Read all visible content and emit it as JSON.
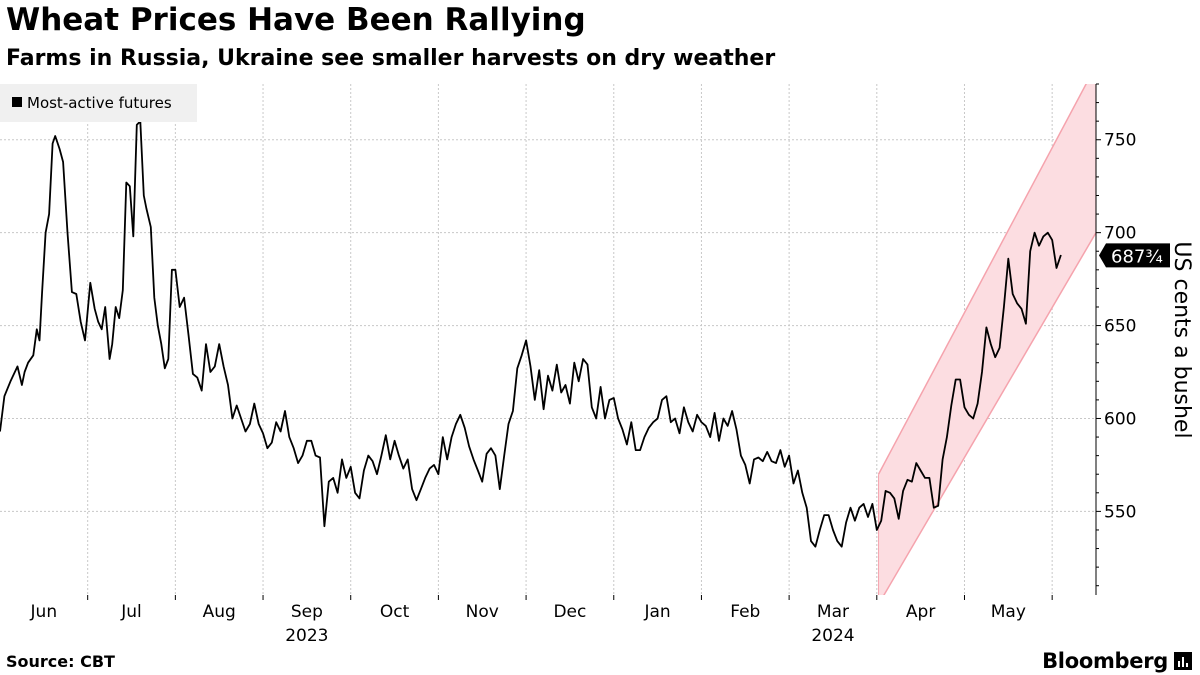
{
  "title": "Wheat Prices Have Been Rallying",
  "subtitle": "Farms in Russia, Ukraine see smaller harvests on dry weather",
  "source": "Source: CBT",
  "brand": "Bloomberg",
  "chart_data": {
    "type": "line",
    "legend": "Most-active futures",
    "legend_position": "top-left",
    "ylabel": "US cents a bushel",
    "ylim": [
      505,
      780
    ],
    "yticks": [
      550,
      600,
      650,
      700,
      750
    ],
    "grid": true,
    "y_axis_side": "right",
    "last_value_label": "687¾",
    "last_value": 687.75,
    "months": [
      "Jun",
      "Jul",
      "Aug",
      "Sep",
      "Oct",
      "Nov",
      "Dec",
      "Jan",
      "Feb",
      "Mar",
      "Apr",
      "May"
    ],
    "year_labels": [
      {
        "label": "2023",
        "under": "Sep"
      },
      {
        "label": "2024",
        "under": "Mar"
      }
    ],
    "x_range": [
      0,
      12.5
    ],
    "color": "#000000",
    "channel": {
      "color": "#f5a3ad",
      "fill": "#fcdde1",
      "x0": 10.02,
      "upper": [
        [
          10.02,
          570
        ],
        [
          12.5,
          790
        ]
      ],
      "lower": [
        [
          10.02,
          500
        ],
        [
          12.5,
          700
        ]
      ]
    },
    "series": [
      {
        "name": "Most-active futures",
        "x": [
          0.0,
          0.05,
          0.12,
          0.2,
          0.25,
          0.28,
          0.32,
          0.38,
          0.42,
          0.45,
          0.48,
          0.52,
          0.56,
          0.6,
          0.63,
          0.68,
          0.72,
          0.77,
          0.82,
          0.87,
          0.92,
          0.97,
          1.03,
          1.08,
          1.12,
          1.16,
          1.2,
          1.25,
          1.28,
          1.32,
          1.36,
          1.4,
          1.44,
          1.48,
          1.52,
          1.56,
          1.6,
          1.64,
          1.67,
          1.72,
          1.76,
          1.8,
          1.84,
          1.88,
          1.92,
          1.96,
          2.0,
          2.05,
          2.1,
          2.15,
          2.2,
          2.25,
          2.3,
          2.35,
          2.4,
          2.45,
          2.5,
          2.55,
          2.6,
          2.65,
          2.7,
          2.75,
          2.8,
          2.85,
          2.9,
          2.95,
          3.0,
          3.05,
          3.1,
          3.15,
          3.2,
          3.25,
          3.3,
          3.35,
          3.4,
          3.45,
          3.5,
          3.55,
          3.6,
          3.65,
          3.7,
          3.75,
          3.8,
          3.85,
          3.9,
          3.95,
          4.0,
          4.05,
          4.1,
          4.15,
          4.2,
          4.25,
          4.3,
          4.35,
          4.4,
          4.45,
          4.5,
          4.55,
          4.6,
          4.65,
          4.7,
          4.75,
          4.8,
          4.85,
          4.9,
          4.95,
          5.0,
          5.05,
          5.1,
          5.15,
          5.2,
          5.25,
          5.3,
          5.35,
          5.4,
          5.45,
          5.5,
          5.55,
          5.6,
          5.65,
          5.7,
          5.75,
          5.8,
          5.85,
          5.9,
          5.95,
          6.0,
          6.05,
          6.1,
          6.15,
          6.2,
          6.25,
          6.3,
          6.35,
          6.4,
          6.45,
          6.5,
          6.55,
          6.6,
          6.65,
          6.7,
          6.75,
          6.8,
          6.85,
          6.9,
          6.95,
          7.0,
          7.05,
          7.1,
          7.15,
          7.2,
          7.25,
          7.3,
          7.35,
          7.4,
          7.45,
          7.5,
          7.55,
          7.6,
          7.65,
          7.7,
          7.75,
          7.8,
          7.85,
          7.9,
          7.95,
          8.0,
          8.05,
          8.1,
          8.15,
          8.2,
          8.25,
          8.3,
          8.35,
          8.4,
          8.45,
          8.5,
          8.55,
          8.6,
          8.65,
          8.7,
          8.75,
          8.8,
          8.85,
          8.9,
          8.95,
          9.0,
          9.05,
          9.1,
          9.15,
          9.2,
          9.25,
          9.3,
          9.35,
          9.4,
          9.45,
          9.5,
          9.55,
          9.6,
          9.65,
          9.7,
          9.75,
          9.8,
          9.85,
          9.9,
          9.95,
          10.0,
          10.05,
          10.1,
          10.15,
          10.2,
          10.25,
          10.3,
          10.35,
          10.4,
          10.45,
          10.5,
          10.55,
          10.6,
          10.65,
          10.7,
          10.75,
          10.8,
          10.85,
          10.9,
          10.95,
          11.0,
          11.05,
          11.1,
          11.15,
          11.2,
          11.25,
          11.3,
          11.35,
          11.4,
          11.45,
          11.5,
          11.55,
          11.6,
          11.65,
          11.7,
          11.75,
          11.8,
          11.85,
          11.9,
          11.95,
          12.0,
          12.05,
          12.1
        ],
        "values": [
          593,
          612,
          620,
          628,
          618,
          625,
          630,
          634,
          648,
          642,
          668,
          700,
          710,
          748,
          752,
          745,
          738,
          700,
          668,
          667,
          652,
          642,
          673,
          659,
          652,
          648,
          660,
          632,
          640,
          660,
          654,
          669,
          727,
          725,
          698,
          758,
          760,
          720,
          713,
          703,
          665,
          650,
          640,
          627,
          632,
          680,
          680,
          660,
          665,
          645,
          624,
          622,
          615,
          640,
          625,
          628,
          640,
          628,
          618,
          600,
          607,
          600,
          593,
          597,
          608,
          597,
          592,
          584,
          587,
          598,
          593,
          604,
          590,
          584,
          576,
          580,
          588,
          588,
          580,
          579,
          542,
          566,
          568,
          560,
          578,
          568,
          574,
          560,
          557,
          572,
          580,
          577,
          570,
          580,
          591,
          578,
          588,
          580,
          573,
          578,
          562,
          556,
          562,
          568,
          573,
          575,
          570,
          590,
          578,
          590,
          597,
          602,
          595,
          585,
          578,
          572,
          566,
          581,
          584,
          580,
          562,
          580,
          597,
          604,
          627,
          634,
          642,
          628,
          610,
          626,
          605,
          623,
          615,
          629,
          614,
          618,
          608,
          630,
          620,
          632,
          629,
          606,
          600,
          617,
          600,
          610,
          611,
          600,
          594,
          586,
          598,
          583,
          583,
          590,
          595,
          598,
          600,
          610,
          612,
          598,
          600,
          592,
          606,
          598,
          593,
          602,
          598,
          596,
          590,
          603,
          588,
          600,
          596,
          604,
          594,
          580,
          575,
          565,
          578,
          579,
          577,
          582,
          577,
          576,
          583,
          574,
          580,
          565,
          572,
          560,
          552,
          534,
          531,
          540,
          548,
          548,
          540,
          534,
          531,
          544,
          552,
          545,
          552,
          554,
          547,
          554,
          540,
          545,
          561,
          560,
          557,
          546,
          561,
          567,
          566,
          576,
          572,
          568,
          568,
          552,
          553,
          578,
          590,
          607,
          621,
          621,
          606,
          602,
          600,
          608,
          625,
          649,
          640,
          633,
          638,
          660,
          686,
          667,
          662,
          659,
          651,
          690,
          700,
          693,
          698,
          700,
          696,
          681,
          688
        ]
      }
    ]
  }
}
